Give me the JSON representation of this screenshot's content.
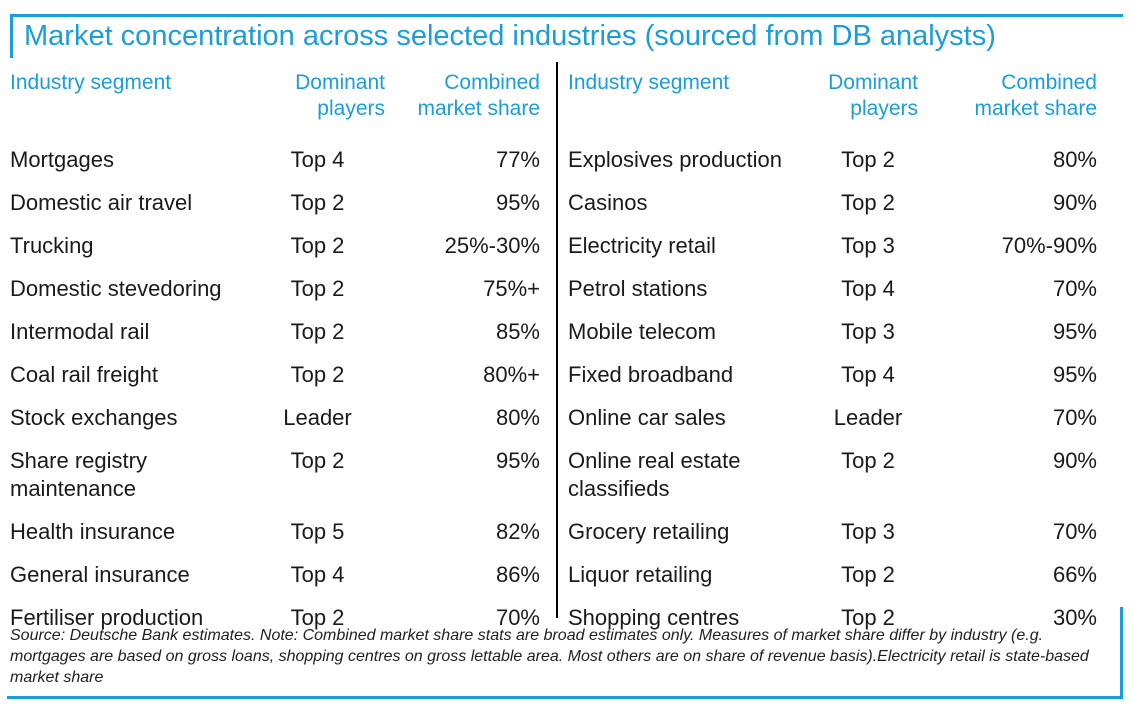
{
  "title": "Market concentration across selected industries (sourced from DB analysts)",
  "colors": {
    "accent_blue": "#1b9dd9",
    "text_black": "#1a1a1a",
    "divider_black": "#000000"
  },
  "columns": {
    "industry": "Industry segment",
    "players": "Dominant\nplayers",
    "share": "Combined\nmarket share"
  },
  "footnote": "Source: Deutsche Bank estimates. Note: Combined market share stats are broad estimates only. Measures of market share differ by industry (e.g. mortgages are based on gross loans, shopping centres on gross lettable area. Most others are on share of revenue basis).Electricity retail is state-based market share",
  "chart_data": {
    "type": "table",
    "title": "Market concentration across selected industries (sourced from DB analysts)",
    "columns": [
      "Industry segment",
      "Dominant players",
      "Combined market share"
    ],
    "panels": [
      {
        "rows": [
          {
            "industry": "Mortgages",
            "players": "Top 4",
            "share": "77%"
          },
          {
            "industry": "Domestic air travel",
            "players": "Top 2",
            "share": "95%"
          },
          {
            "industry": "Trucking",
            "players": "Top 2",
            "share": "25%-30%"
          },
          {
            "industry": "Domestic stevedoring",
            "players": "Top 2",
            "share": "75%+"
          },
          {
            "industry": "Intermodal rail",
            "players": "Top 2",
            "share": "85%"
          },
          {
            "industry": "Coal rail freight",
            "players": "Top 2",
            "share": "80%+"
          },
          {
            "industry": "Stock exchanges",
            "players": "Leader",
            "share": "80%"
          },
          {
            "industry": "Share registry maintenance",
            "players": "Top 2",
            "share": "95%"
          },
          {
            "industry": "Health insurance",
            "players": "Top 5",
            "share": "82%"
          },
          {
            "industry": "General insurance",
            "players": "Top 4",
            "share": "86%"
          },
          {
            "industry": "Fertiliser production",
            "players": "Top 2",
            "share": "70%"
          }
        ]
      },
      {
        "rows": [
          {
            "industry": "Explosives production",
            "players": "Top 2",
            "share": "80%"
          },
          {
            "industry": "Casinos",
            "players": "Top 2",
            "share": "90%"
          },
          {
            "industry": "Electricity retail",
            "players": "Top 3",
            "share": "70%-90%"
          },
          {
            "industry": "Petrol stations",
            "players": "Top 4",
            "share": "70%"
          },
          {
            "industry": "Mobile telecom",
            "players": "Top 3",
            "share": "95%"
          },
          {
            "industry": "Fixed broadband",
            "players": "Top 4",
            "share": "95%"
          },
          {
            "industry": "Online car sales",
            "players": "Leader",
            "share": "70%"
          },
          {
            "industry": "Online real estate classifieds",
            "players": "Top 2",
            "share": "90%"
          },
          {
            "industry": "Grocery retailing",
            "players": "Top 3",
            "share": "70%"
          },
          {
            "industry": "Liquor retailing",
            "players": "Top 2",
            "share": "66%"
          },
          {
            "industry": "Shopping centres",
            "players": "Top 2",
            "share": "30%"
          }
        ]
      }
    ],
    "source_note": "Source: Deutsche Bank estimates. Note: Combined market share stats are broad estimates only. Measures of market share differ by industry (e.g. mortgages are based on gross loans, shopping centres on gross lettable area. Most others are on share of revenue basis).Electricity retail is state-based market share"
  }
}
